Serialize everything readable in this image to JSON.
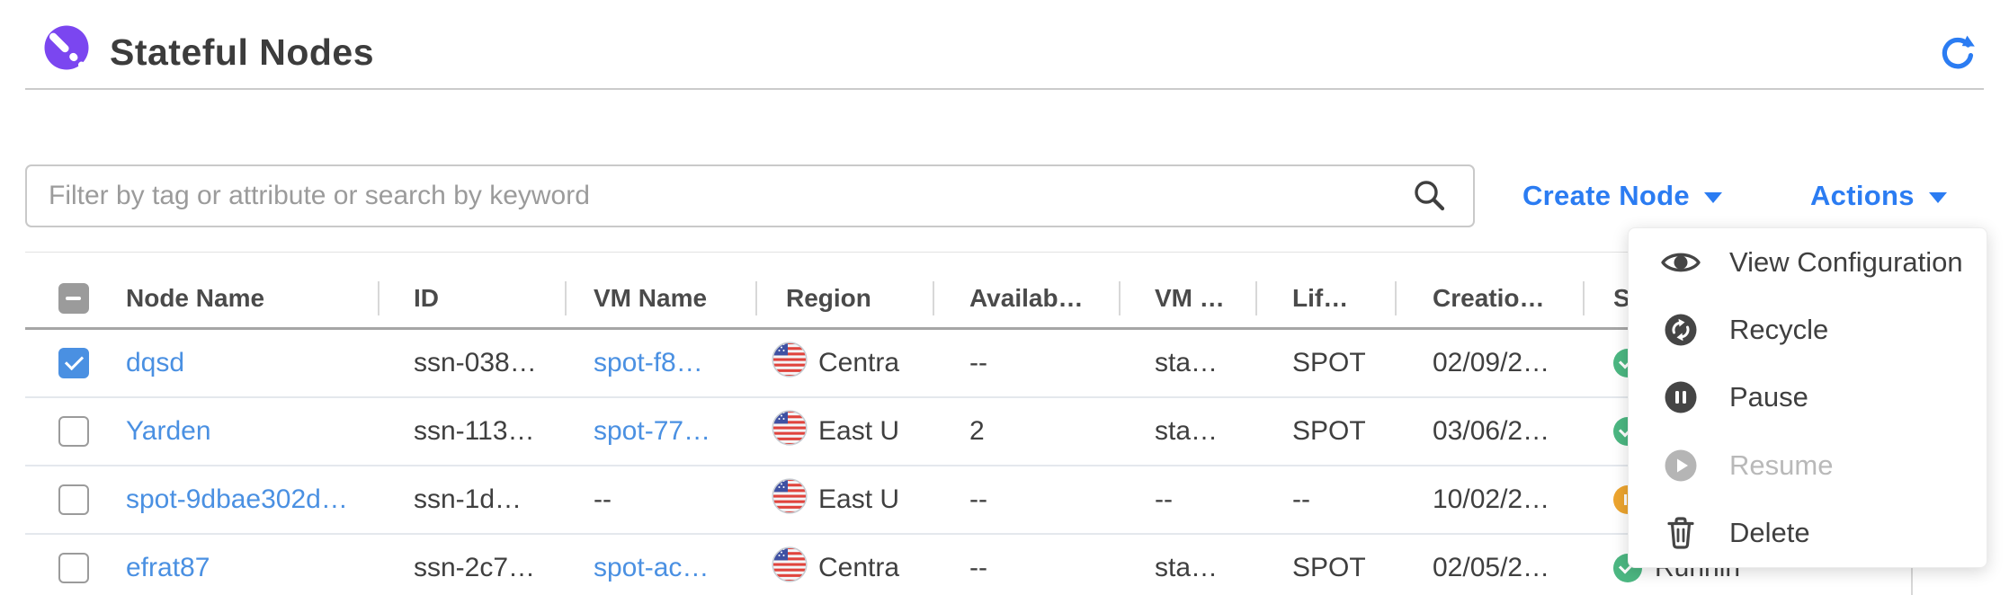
{
  "header": {
    "title": "Stateful Nodes"
  },
  "toolbar": {
    "filter_placeholder": "Filter by tag or attribute or search by keyword",
    "create_node_label": "Create Node",
    "actions_label": "Actions"
  },
  "table": {
    "columns": [
      {
        "label": "Node Name"
      },
      {
        "label": "ID"
      },
      {
        "label": "VM Name"
      },
      {
        "label": "Region"
      },
      {
        "label": "Availab…"
      },
      {
        "label": "VM …"
      },
      {
        "label": "Lif…"
      },
      {
        "label": "Creatio…"
      },
      {
        "label": "Status"
      }
    ],
    "rows": [
      {
        "checked": true,
        "node_name": "dqsd",
        "id": "ssn-038…",
        "vm_name": "spot-f8…",
        "vm_name_link": true,
        "region": "Centra",
        "availability_zone": "--",
        "vm_size": "sta…",
        "lifecycle": "SPOT",
        "creation_date": "02/09/2…",
        "status": "green",
        "status_label": ""
      },
      {
        "checked": false,
        "node_name": "Yarden",
        "id": "ssn-113…",
        "vm_name": "spot-77…",
        "vm_name_link": true,
        "region": "East U",
        "availability_zone": "2",
        "vm_size": "sta…",
        "lifecycle": "SPOT",
        "creation_date": "03/06/2…",
        "status": "green",
        "status_label": ""
      },
      {
        "checked": false,
        "node_name": "spot-9dbae302d…",
        "id": "ssn-1d…",
        "vm_name": "--",
        "vm_name_link": false,
        "region": "East U",
        "availability_zone": "--",
        "vm_size": "--",
        "lifecycle": "--",
        "creation_date": "10/02/2…",
        "status": "orange",
        "status_label": ""
      },
      {
        "checked": false,
        "node_name": "efrat87",
        "id": "ssn-2c7…",
        "vm_name": "spot-ac…",
        "vm_name_link": true,
        "region": "Centra",
        "availability_zone": "--",
        "vm_size": "sta…",
        "lifecycle": "SPOT",
        "creation_date": "02/05/2…",
        "status": "green",
        "status_label": "Runnin"
      }
    ]
  },
  "actions_menu": {
    "items": [
      {
        "label": "View Configuration",
        "icon": "eye-icon",
        "disabled": false
      },
      {
        "label": "Recycle",
        "icon": "recycle-icon",
        "disabled": false
      },
      {
        "label": "Pause",
        "icon": "pause-icon",
        "disabled": false
      },
      {
        "label": "Resume",
        "icon": "play-icon",
        "disabled": true
      },
      {
        "label": "Delete",
        "icon": "trash-icon",
        "disabled": false
      }
    ]
  },
  "colors": {
    "accent_blue": "#2b7cf2",
    "link_blue": "#4a90e2",
    "brand_purple": "#7b46f0",
    "status_green": "#4cb782",
    "status_orange": "#eda52f"
  }
}
